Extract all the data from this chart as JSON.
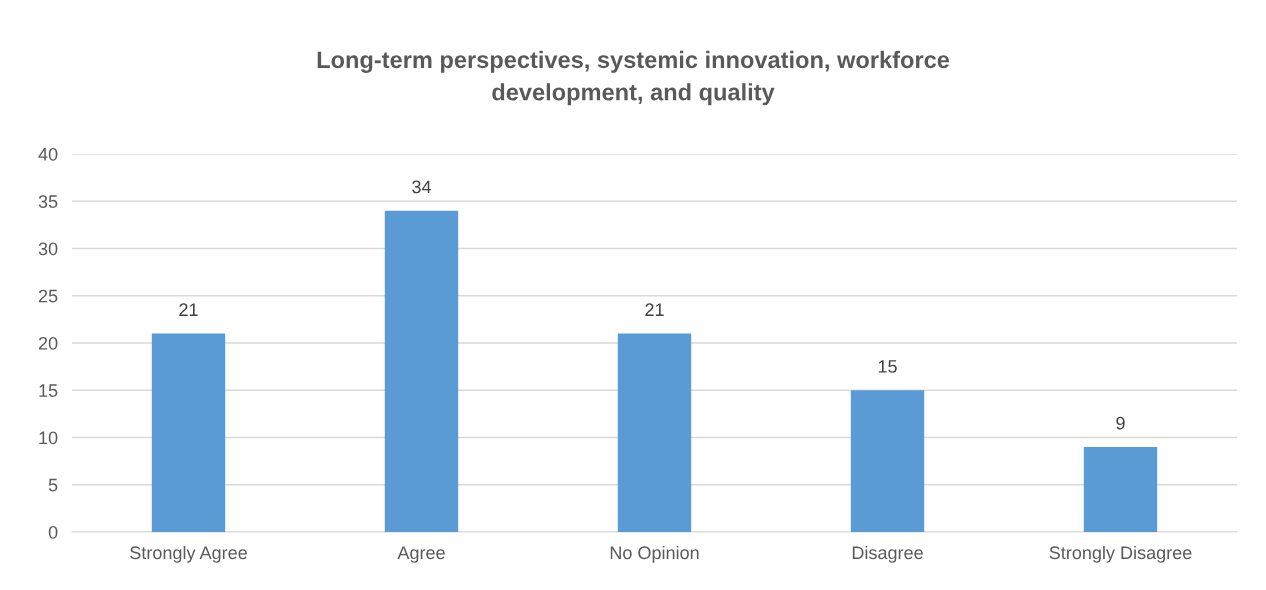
{
  "chart_data": {
    "type": "bar",
    "title": "Long-term perspectives, systemic innovation, workforce\ndevelopment, and quality",
    "categories": [
      "Strongly Agree",
      "Agree",
      "No Opinion",
      "Disagree",
      "Strongly Disagree"
    ],
    "values": [
      21,
      34,
      21,
      15,
      9
    ],
    "color": "#5b9bd5",
    "ylim": [
      0,
      40
    ],
    "yticks": [
      0,
      5,
      10,
      15,
      20,
      25,
      30,
      35,
      40
    ],
    "grid": "y",
    "data_labels": true,
    "legend": false
  }
}
